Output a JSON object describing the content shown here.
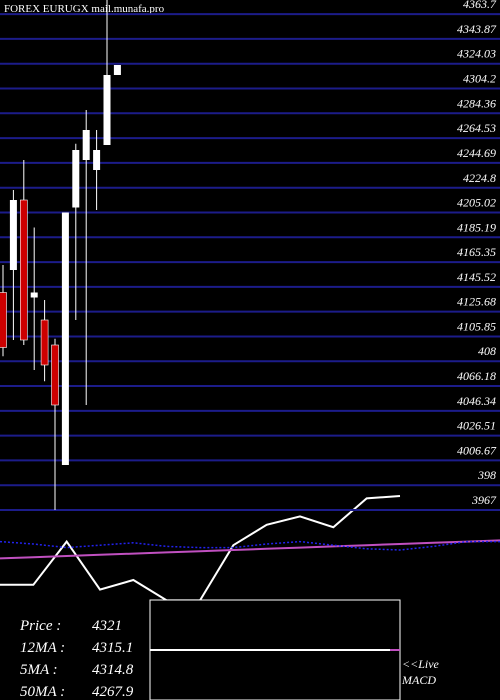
{
  "header": "FOREX  EURUGX mail.munafa.pro",
  "chart_data": [
    {
      "type": "candlestick",
      "open": [
        4141,
        4159,
        4215,
        4137,
        4119,
        4099,
        4003,
        4209,
        4247,
        4239,
        4259,
        4315
      ],
      "high": [
        4163,
        4223,
        4247,
        4193,
        4135,
        4104,
        4205,
        4260,
        4287,
        4271,
        4375,
        4323
      ],
      "low": [
        4090,
        4103,
        4099,
        4079,
        4070,
        3967,
        4003,
        4119,
        4051,
        4207,
        4259,
        4315
      ],
      "close": [
        4097,
        4215,
        4103,
        4141,
        4083,
        4051,
        4205,
        4255,
        4271,
        4255,
        4315,
        4323
      ],
      "up_color": "#ffffff",
      "down_color": "#cc0000",
      "grid": true,
      "grid_color": "#1c1c8a",
      "ylim": [
        3943,
        4375
      ],
      "yticks": [
        4363.7,
        4343.87,
        4324.03,
        4304.2,
        4284.36,
        4264.53,
        4244.69,
        4224.8,
        4205.02,
        4185.19,
        4165.35,
        4145.52,
        4125.68,
        4105.85,
        {
          "value": 4086.01,
          "label": "408"
        },
        4066.18,
        4046.34,
        4026.51,
        4006.67,
        {
          "value": 3986.84,
          "label": "398"
        },
        3967
      ]
    },
    {
      "type": "line",
      "ylim": [
        0,
        100
      ],
      "series": [
        {
          "color": "#2222ee",
          "dash": true,
          "values": [
            57,
            55,
            52,
            54,
            56,
            53,
            52,
            52,
            55,
            57,
            54,
            51,
            50,
            53,
            57,
            57
          ]
        },
        {
          "color": "#c050c0",
          "values": [
            43,
            44,
            45,
            46,
            47,
            48,
            49,
            50,
            51,
            52,
            53,
            54,
            55,
            56,
            57,
            58
          ]
        },
        {
          "color": "#ffffff",
          "values": [
            21,
            21,
            57,
            17,
            25,
            8,
            8,
            54,
            71,
            78,
            69,
            93,
            95,
            null,
            null,
            null
          ]
        }
      ],
      "annotations": [
        "<<Live",
        "MACD"
      ]
    }
  ],
  "stats": [
    {
      "label": "Price   :",
      "value": "4321"
    },
    {
      "label": "12MA :",
      "value": "4315.1"
    },
    {
      "label": "5MA :",
      "value": "4314.8"
    },
    {
      "label": "50MA :",
      "value": "4267.9"
    }
  ]
}
